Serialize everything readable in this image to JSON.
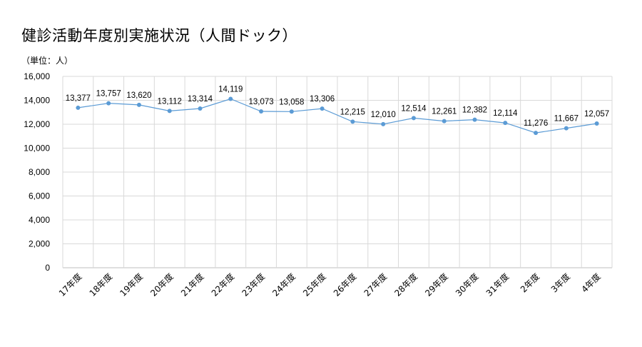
{
  "page": {
    "title": "健診活動年度別実施状況（人間ドック）",
    "unit_label": "（単位：人）"
  },
  "colors": {
    "line": "#5B9BD5",
    "grid": "#D9D9D9",
    "axis": "#BFBFBF"
  },
  "chart_data": {
    "type": "line",
    "title": "健診活動年度別実施状況（人間ドック）",
    "ylabel": "（単位：人）",
    "xlabel": "",
    "ylim": [
      0,
      16000
    ],
    "yticks": [
      0,
      2000,
      4000,
      6000,
      8000,
      10000,
      12000,
      14000,
      16000
    ],
    "ytick_labels": [
      "0",
      "2,000",
      "4,000",
      "6,000",
      "8,000",
      "10,000",
      "12,000",
      "14,000",
      "16,000"
    ],
    "grid": true,
    "legend": "none",
    "categories": [
      "17年度",
      "18年度",
      "19年度",
      "20年度",
      "21年度",
      "22年度",
      "23年度",
      "24年度",
      "25年度",
      "26年度",
      "27年度",
      "28年度",
      "29年度",
      "30年度",
      "31年度",
      "2年度",
      "3年度",
      "4年度"
    ],
    "values": [
      13377,
      13757,
      13620,
      13112,
      13314,
      14119,
      13073,
      13058,
      13306,
      12215,
      12010,
      12514,
      12261,
      12382,
      12114,
      11276,
      11667,
      12057
    ],
    "value_labels": [
      "13,377",
      "13,757",
      "13,620",
      "13,112",
      "13,314",
      "14,119",
      "13,073",
      "13,058",
      "13,306",
      "12,215",
      "12,010",
      "12,514",
      "12,261",
      "12,382",
      "12,114",
      "11,276",
      "11,667",
      "12,057"
    ]
  }
}
